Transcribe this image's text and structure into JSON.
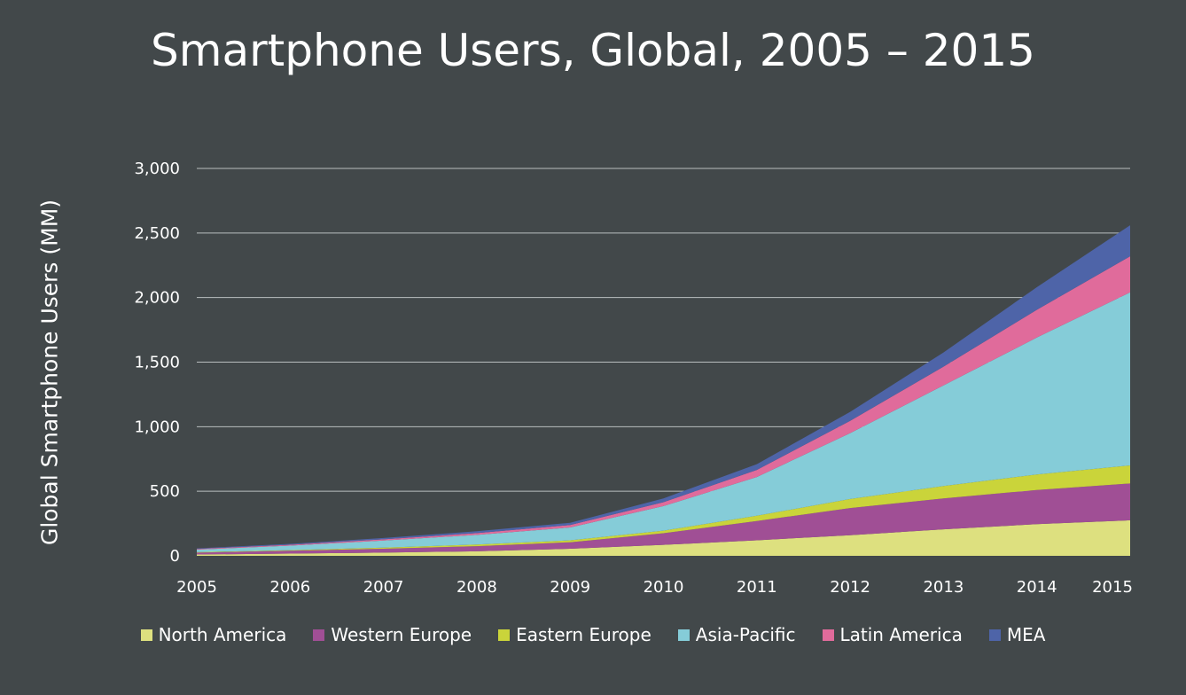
{
  "chart_data": {
    "type": "area",
    "stacked": true,
    "title": "Smartphone Users, Global, 2005 – 2015",
    "ylabel": "Global Smartphone Users (MM)",
    "xlabel": "",
    "x": [
      "2005",
      "2006",
      "2007",
      "2008",
      "2009",
      "2010",
      "2011",
      "2012",
      "2013",
      "2014",
      "2015"
    ],
    "ylim": [
      0,
      3000
    ],
    "yticks": [
      0,
      500,
      1000,
      1500,
      2000,
      2500,
      3000
    ],
    "ytick_labels": [
      "0",
      "500",
      "1,000",
      "1,500",
      "2,000",
      "2,500",
      "3,000"
    ],
    "grid": true,
    "legend_position": "bottom",
    "series": [
      {
        "name": "North America",
        "color": "#dde07f",
        "values": [
          10,
          17,
          25,
          35,
          55,
          85,
          120,
          160,
          205,
          245,
          275
        ]
      },
      {
        "name": "Western Europe",
        "color": "#a04f95",
        "values": [
          15,
          22,
          30,
          40,
          50,
          90,
          150,
          210,
          240,
          265,
          285
        ]
      },
      {
        "name": "Eastern Europe",
        "color": "#cad43a",
        "values": [
          3,
          5,
          8,
          12,
          15,
          20,
          40,
          70,
          95,
          120,
          140
        ]
      },
      {
        "name": "Asia-Pacific",
        "color": "#85ccd8",
        "values": [
          20,
          35,
          55,
          75,
          100,
          190,
          300,
          510,
          780,
          1060,
          1340
        ]
      },
      {
        "name": "Latin America",
        "color": "#e06b9b",
        "values": [
          5,
          7,
          10,
          14,
          18,
          30,
          55,
          95,
          145,
          215,
          280
        ]
      },
      {
        "name": "MEA",
        "color": "#4e64a8",
        "values": [
          5,
          7,
          10,
          14,
          18,
          30,
          45,
          70,
          110,
          175,
          240
        ]
      }
    ]
  }
}
